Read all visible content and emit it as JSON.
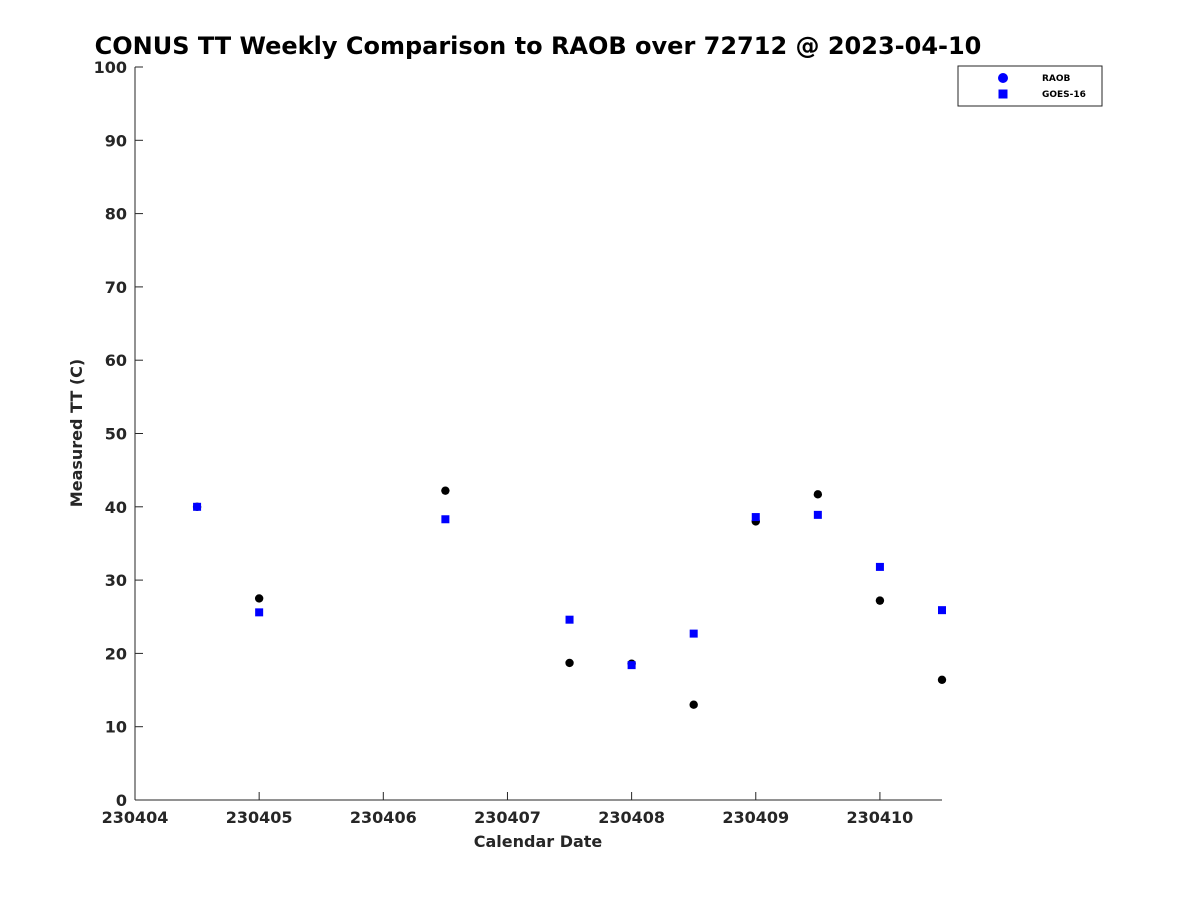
{
  "chart_data": {
    "type": "scatter",
    "title": "CONUS TT Weekly Comparison to RAOB over 72712 @ 2023-04-10",
    "xlabel": "Calendar Date",
    "ylabel": "Measured TT (C)",
    "xlim": [
      230404,
      230410.5
    ],
    "ylim": [
      0,
      100
    ],
    "xticks": [
      230404,
      230405,
      230406,
      230407,
      230408,
      230409,
      230410
    ],
    "xtick_labels": [
      "230404",
      "230405",
      "230406",
      "230407",
      "230408",
      "230409",
      "230410"
    ],
    "yticks": [
      0,
      10,
      20,
      30,
      40,
      50,
      60,
      70,
      80,
      90,
      100
    ],
    "ytick_labels": [
      "0",
      "10",
      "20",
      "30",
      "40",
      "50",
      "60",
      "70",
      "80",
      "90",
      "100"
    ],
    "grid": false,
    "legend_position": "top-right",
    "series": [
      {
        "name": "RAOB",
        "marker": "circle",
        "legend_color": "#0000ff",
        "color": "#000000",
        "points": [
          {
            "x": 230404.5,
            "y": 40.0
          },
          {
            "x": 230405.0,
            "y": 27.5
          },
          {
            "x": 230406.5,
            "y": 42.2
          },
          {
            "x": 230407.5,
            "y": 18.7
          },
          {
            "x": 230408.0,
            "y": 18.6
          },
          {
            "x": 230408.5,
            "y": 13.0
          },
          {
            "x": 230409.0,
            "y": 38.0
          },
          {
            "x": 230409.5,
            "y": 41.7
          },
          {
            "x": 230410.0,
            "y": 27.2
          },
          {
            "x": 230410.5,
            "y": 16.4
          }
        ]
      },
      {
        "name": "GOES-16",
        "marker": "square",
        "legend_color": "#0000ff",
        "color": "#0000ff",
        "points": [
          {
            "x": 230404.5,
            "y": 40.0
          },
          {
            "x": 230405.0,
            "y": 25.6
          },
          {
            "x": 230406.5,
            "y": 38.3
          },
          {
            "x": 230407.5,
            "y": 24.6
          },
          {
            "x": 230408.0,
            "y": 18.4
          },
          {
            "x": 230408.5,
            "y": 22.7
          },
          {
            "x": 230409.0,
            "y": 38.6
          },
          {
            "x": 230409.5,
            "y": 38.9
          },
          {
            "x": 230410.0,
            "y": 31.8
          },
          {
            "x": 230410.5,
            "y": 25.9
          }
        ]
      }
    ]
  }
}
